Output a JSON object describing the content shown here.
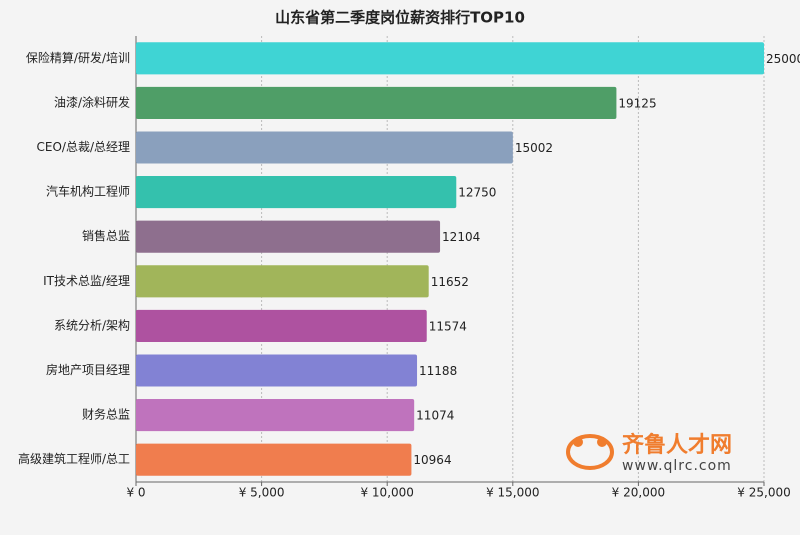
{
  "chart_data": {
    "type": "barh",
    "title": "山东省第二季度岗位薪资排行TOP10",
    "categories": [
      "保险精算/研发/培训",
      "油漆/涂料研发",
      "CEO/总裁/总经理",
      "汽车机构工程师",
      "销售总监",
      "IT技术总监/经理",
      "系统分析/架构",
      "房地产项目经理",
      "财务总监",
      "高级建筑工程师/总工"
    ],
    "values": [
      25000,
      19125,
      15002,
      12750,
      12104,
      11652,
      11574,
      11188,
      11074,
      10964
    ],
    "colors": [
      "#3fd4d4",
      "#4f9e67",
      "#8aa0bd",
      "#34c1ad",
      "#8e6f8e",
      "#a1b55a",
      "#ae52a0",
      "#8282d4",
      "#bf73bd",
      "#f07d4e"
    ],
    "xlim": [
      0,
      25000
    ],
    "xticks": [
      {
        "value": 0,
        "label": "¥ 0"
      },
      {
        "value": 5000,
        "label": "¥ 5,000"
      },
      {
        "value": 10000,
        "label": "¥ 10,000"
      },
      {
        "value": 15000,
        "label": "¥ 15,000"
      },
      {
        "value": 20000,
        "label": "¥ 20,000"
      },
      {
        "value": 25000,
        "label": "¥ 25,000"
      }
    ],
    "grid": true
  },
  "watermark": {
    "name": "齐鲁人才网",
    "url": "www.qlrc.com"
  }
}
